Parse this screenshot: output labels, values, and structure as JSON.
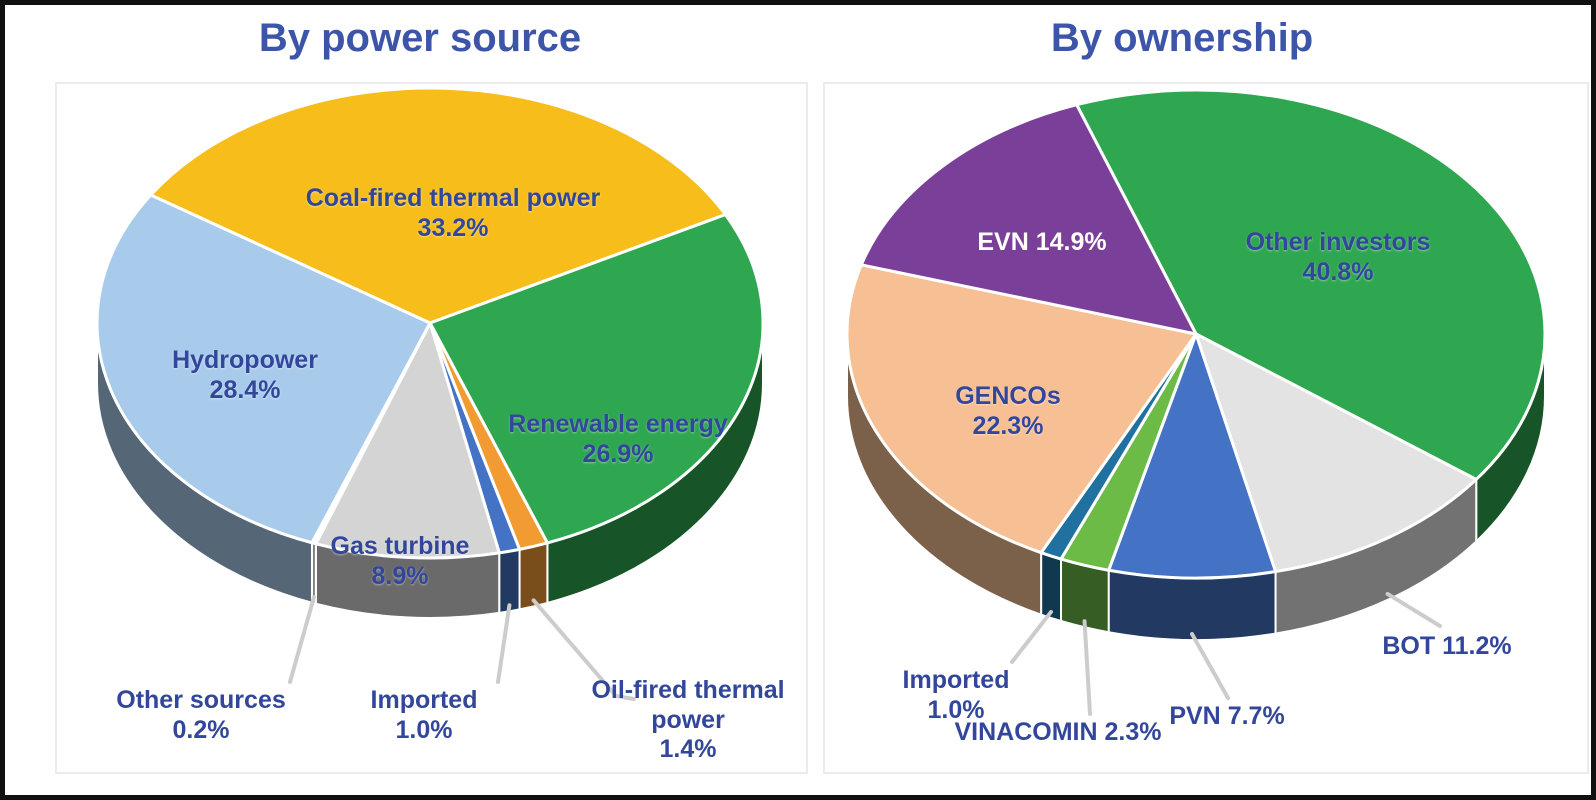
{
  "page": {
    "frame_color": "#101010",
    "background": "#ffffff",
    "label_text_color": "#32479B",
    "title_text_color": "#3C55A8",
    "leader_line_color": "#cccccc"
  },
  "chart_data": [
    {
      "type": "pie",
      "title": "By power source",
      "style": "3d-pie",
      "labels_position": "inside-and-outside",
      "slices": [
        {
          "label": "Coal-fired thermal power",
          "value": 33.2,
          "pct": "33.2%",
          "color": "#F7BD1A"
        },
        {
          "label": "Renewable energy",
          "value": 26.9,
          "pct": "26.9%",
          "color": "#2EA750"
        },
        {
          "label": "Oil-fired thermal power",
          "value": 1.4,
          "pct": "1.4%",
          "color": "#F39B33"
        },
        {
          "label": "Imported",
          "value": 1.0,
          "pct": "1.0%",
          "color": "#4472C4"
        },
        {
          "label": "Gas turbine",
          "value": 8.9,
          "pct": "8.9%",
          "color": "#D4D4D4"
        },
        {
          "label": "Other sources",
          "value": 0.2,
          "pct": "0.2%",
          "color": "#FDFDFD"
        },
        {
          "label": "Hydropower",
          "value": 28.4,
          "pct": "28.4%",
          "color": "#A9CBEB"
        }
      ]
    },
    {
      "type": "pie",
      "title": "By ownership",
      "style": "3d-pie",
      "labels_position": "inside-and-outside",
      "slices": [
        {
          "label": "Other investors",
          "value": 40.8,
          "pct": "40.8%",
          "color": "#2EA750"
        },
        {
          "label": "BOT",
          "value": 11.2,
          "pct": "11.2%",
          "color": "#E3E3E3"
        },
        {
          "label": "PVN",
          "value": 7.7,
          "pct": "7.7%",
          "color": "#4472C4"
        },
        {
          "label": "VINACOMIN",
          "value": 2.3,
          "pct": "2.3%",
          "color": "#6CBB47"
        },
        {
          "label": "Imported",
          "value": 1.0,
          "pct": "1.0%",
          "color": "#20719F"
        },
        {
          "label": "GENCOs",
          "value": 22.3,
          "pct": "22.3%",
          "color": "#F6BF94"
        },
        {
          "label": "EVN",
          "value": 14.9,
          "pct": "14.9%",
          "color": "#7A4099"
        }
      ]
    }
  ]
}
